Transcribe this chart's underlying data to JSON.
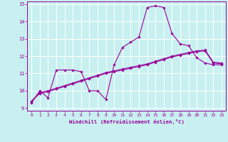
{
  "title": "",
  "xlabel": "Windchill (Refroidissement éolien,°C)",
  "ylabel": "",
  "xlim": [
    -0.5,
    23.5
  ],
  "ylim": [
    8.85,
    15.15
  ],
  "yticks": [
    9,
    10,
    11,
    12,
    13,
    14,
    15
  ],
  "xticks": [
    0,
    1,
    2,
    3,
    4,
    5,
    6,
    7,
    8,
    9,
    10,
    11,
    12,
    13,
    14,
    15,
    16,
    17,
    18,
    19,
    20,
    21,
    22,
    23
  ],
  "background_color": "#c8f0f0",
  "grid_color": "#ffffff",
  "line_color": "#990099",
  "series": [
    [
      9.3,
      10.0,
      9.6,
      11.2,
      11.2,
      11.2,
      11.1,
      10.0,
      10.0,
      9.5,
      11.5,
      12.5,
      12.8,
      13.1,
      14.8,
      14.9,
      14.8,
      13.3,
      12.7,
      12.6,
      11.9,
      11.6,
      11.5,
      11.5
    ],
    [
      9.4,
      9.9,
      10.0,
      10.15,
      10.3,
      10.45,
      10.6,
      10.75,
      10.9,
      11.05,
      11.15,
      11.25,
      11.35,
      11.45,
      11.55,
      11.7,
      11.85,
      12.0,
      12.1,
      12.2,
      12.3,
      12.35,
      11.65,
      11.6
    ],
    [
      9.4,
      9.85,
      9.95,
      10.1,
      10.25,
      10.4,
      10.55,
      10.7,
      10.85,
      11.0,
      11.1,
      11.2,
      11.3,
      11.4,
      11.5,
      11.65,
      11.8,
      11.95,
      12.05,
      12.15,
      12.25,
      12.3,
      11.6,
      11.55
    ]
  ]
}
